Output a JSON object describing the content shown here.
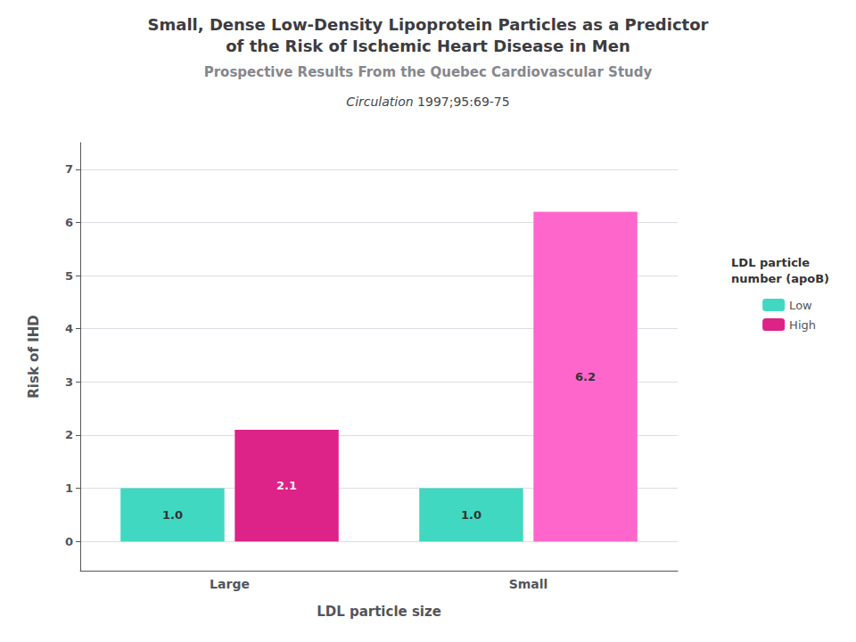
{
  "chart_data": {
    "type": "bar",
    "title": [
      "Small, Dense Low-Density Lipoprotein Particles as a Predictor",
      "of the Risk of Ischemic Heart Disease in Men"
    ],
    "subtitle": "Prospective Results From the Quebec Cardiovascular Study",
    "citation": [
      "Circulation",
      " 1997;95:69-75"
    ],
    "xlabel": "LDL particle size",
    "ylabel": "Risk of IHD",
    "annotations": [
      "LDL particle",
      "number (apoB)"
    ],
    "categories": [
      "Large",
      "Small"
    ],
    "series": [
      {
        "name": "Low",
        "color": "#40d8c0",
        "values": [
          1.0,
          1.0
        ],
        "value_labels": [
          "1.0",
          "1.0"
        ]
      },
      {
        "name": "High",
        "colors": [
          "#dd2288",
          "#ff66cc"
        ],
        "values": [
          2.1,
          6.2
        ],
        "value_labels": [
          "2.1",
          "6.2"
        ]
      }
    ],
    "ylim": [
      -0.55,
      7.5
    ],
    "yticks": [
      0,
      1,
      2,
      3,
      4,
      5,
      6,
      7
    ],
    "grid": true,
    "legend": "right",
    "data_labels": true
  }
}
